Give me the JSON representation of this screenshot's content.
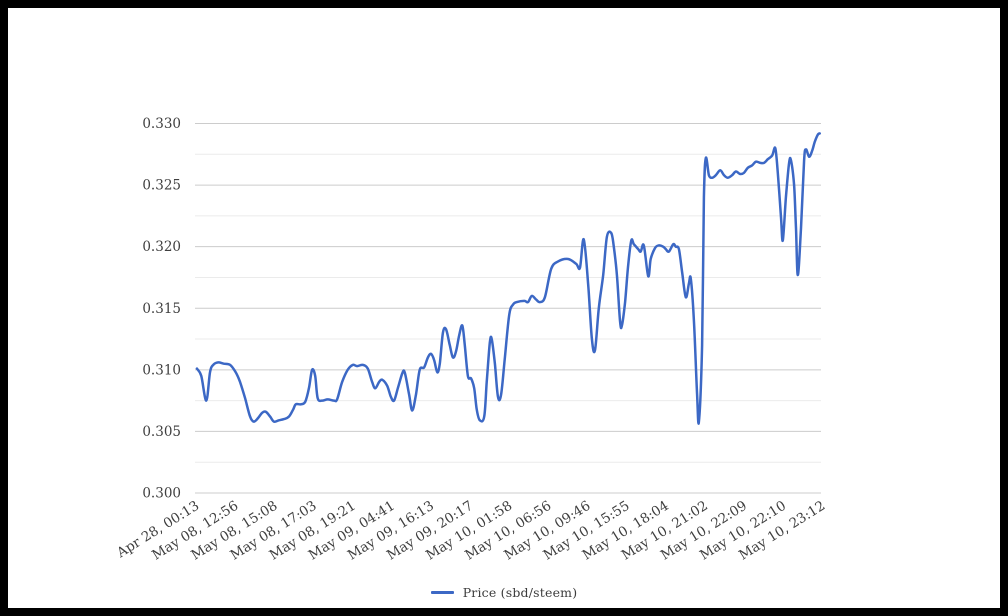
{
  "chart_data": {
    "type": "line",
    "title": "",
    "series_name": "Price (sbd/steem)",
    "line_color": "#3c68c5",
    "grid": {
      "major_color": "#cccccc",
      "minor_color": "#ebebeb",
      "on": true
    },
    "label_color": "#3f3f3f",
    "legend_position": "bottom-center",
    "ylim": [
      0.3,
      0.33
    ],
    "y_major_step": 0.005,
    "y_minor_step": 0.0025,
    "y_ticks": [
      "0.300",
      "0.305",
      "0.310",
      "0.315",
      "0.320",
      "0.325",
      "0.330"
    ],
    "x_ticks": [
      "Apr 28, 00:13",
      "May 08, 12:56",
      "May 08, 15:08",
      "May 08, 17:03",
      "May 08, 19:21",
      "May 09, 04:41",
      "May 09, 16:13",
      "May 09, 20:17",
      "May 10, 01:58",
      "May 10, 06:56",
      "May 10, 09:46",
      "May 10, 15:55",
      "May 10, 18:04",
      "May 10, 21:02",
      "May 10, 22:09",
      "May 10, 22:10",
      "May 10, 23:12"
    ],
    "points": [
      [
        0.003,
        0.3101
      ],
      [
        0.01,
        0.3095
      ],
      [
        0.018,
        0.3075
      ],
      [
        0.024,
        0.3098
      ],
      [
        0.029,
        0.3104
      ],
      [
        0.037,
        0.3106
      ],
      [
        0.046,
        0.3105
      ],
      [
        0.056,
        0.3104
      ],
      [
        0.065,
        0.3098
      ],
      [
        0.072,
        0.309
      ],
      [
        0.08,
        0.3077
      ],
      [
        0.088,
        0.3062
      ],
      [
        0.094,
        0.3058
      ],
      [
        0.101,
        0.3061
      ],
      [
        0.107,
        0.3065
      ],
      [
        0.113,
        0.3066
      ],
      [
        0.12,
        0.3062
      ],
      [
        0.126,
        0.3058
      ],
      [
        0.134,
        0.3059
      ],
      [
        0.142,
        0.306
      ],
      [
        0.15,
        0.3062
      ],
      [
        0.157,
        0.3068
      ],
      [
        0.161,
        0.3072
      ],
      [
        0.169,
        0.3072
      ],
      [
        0.176,
        0.3074
      ],
      [
        0.182,
        0.3085
      ],
      [
        0.187,
        0.31
      ],
      [
        0.192,
        0.3095
      ],
      [
        0.196,
        0.3077
      ],
      [
        0.203,
        0.3075
      ],
      [
        0.212,
        0.3076
      ],
      [
        0.222,
        0.3075
      ],
      [
        0.227,
        0.3076
      ],
      [
        0.235,
        0.309
      ],
      [
        0.244,
        0.31
      ],
      [
        0.252,
        0.3104
      ],
      [
        0.259,
        0.3103
      ],
      [
        0.268,
        0.3104
      ],
      [
        0.276,
        0.3101
      ],
      [
        0.283,
        0.309
      ],
      [
        0.288,
        0.3085
      ],
      [
        0.294,
        0.309
      ],
      [
        0.299,
        0.3092
      ],
      [
        0.307,
        0.3087
      ],
      [
        0.313,
        0.3078
      ],
      [
        0.318,
        0.3075
      ],
      [
        0.324,
        0.3085
      ],
      [
        0.331,
        0.3097
      ],
      [
        0.335,
        0.3098
      ],
      [
        0.342,
        0.308
      ],
      [
        0.347,
        0.3067
      ],
      [
        0.353,
        0.308
      ],
      [
        0.359,
        0.31
      ],
      [
        0.366,
        0.3102
      ],
      [
        0.372,
        0.311
      ],
      [
        0.377,
        0.3113
      ],
      [
        0.382,
        0.3108
      ],
      [
        0.387,
        0.3098
      ],
      [
        0.391,
        0.3105
      ],
      [
        0.396,
        0.313
      ],
      [
        0.401,
        0.3133
      ],
      [
        0.407,
        0.312
      ],
      [
        0.412,
        0.311
      ],
      [
        0.417,
        0.3115
      ],
      [
        0.422,
        0.3128
      ],
      [
        0.427,
        0.3136
      ],
      [
        0.431,
        0.312
      ],
      [
        0.436,
        0.3095
      ],
      [
        0.441,
        0.3093
      ],
      [
        0.446,
        0.3085
      ],
      [
        0.45,
        0.3068
      ],
      [
        0.455,
        0.3059
      ],
      [
        0.462,
        0.3062
      ],
      [
        0.466,
        0.309
      ],
      [
        0.471,
        0.3122
      ],
      [
        0.474,
        0.3125
      ],
      [
        0.479,
        0.3105
      ],
      [
        0.484,
        0.3078
      ],
      [
        0.489,
        0.308
      ],
      [
        0.495,
        0.311
      ],
      [
        0.502,
        0.3145
      ],
      [
        0.508,
        0.3153
      ],
      [
        0.514,
        0.3155
      ],
      [
        0.526,
        0.3156
      ],
      [
        0.532,
        0.3155
      ],
      [
        0.538,
        0.316
      ],
      [
        0.545,
        0.3157
      ],
      [
        0.551,
        0.3155
      ],
      [
        0.559,
        0.3159
      ],
      [
        0.569,
        0.3182
      ],
      [
        0.58,
        0.3188
      ],
      [
        0.596,
        0.319
      ],
      [
        0.609,
        0.3186
      ],
      [
        0.615,
        0.3183
      ],
      [
        0.621,
        0.3206
      ],
      [
        0.628,
        0.317
      ],
      [
        0.634,
        0.3125
      ],
      [
        0.639,
        0.3116
      ],
      [
        0.645,
        0.315
      ],
      [
        0.652,
        0.3177
      ],
      [
        0.658,
        0.3208
      ],
      [
        0.665,
        0.3211
      ],
      [
        0.669,
        0.32
      ],
      [
        0.674,
        0.3177
      ],
      [
        0.679,
        0.3139
      ],
      [
        0.682,
        0.3136
      ],
      [
        0.687,
        0.3155
      ],
      [
        0.692,
        0.3185
      ],
      [
        0.697,
        0.3205
      ],
      [
        0.701,
        0.3202
      ],
      [
        0.708,
        0.3198
      ],
      [
        0.712,
        0.3196
      ],
      [
        0.717,
        0.3201
      ],
      [
        0.724,
        0.3176
      ],
      [
        0.728,
        0.319
      ],
      [
        0.735,
        0.3199
      ],
      [
        0.741,
        0.3201
      ],
      [
        0.748,
        0.32
      ],
      [
        0.752,
        0.3198
      ],
      [
        0.757,
        0.3196
      ],
      [
        0.764,
        0.3202
      ],
      [
        0.768,
        0.32
      ],
      [
        0.773,
        0.3198
      ],
      [
        0.778,
        0.318
      ],
      [
        0.784,
        0.3159
      ],
      [
        0.789,
        0.317
      ],
      [
        0.792,
        0.3174
      ],
      [
        0.797,
        0.314
      ],
      [
        0.802,
        0.308
      ],
      [
        0.805,
        0.3058
      ],
      [
        0.81,
        0.312
      ],
      [
        0.813,
        0.324
      ],
      [
        0.816,
        0.3272
      ],
      [
        0.821,
        0.3258
      ],
      [
        0.826,
        0.3256
      ],
      [
        0.832,
        0.3258
      ],
      [
        0.839,
        0.3262
      ],
      [
        0.845,
        0.3258
      ],
      [
        0.851,
        0.3256
      ],
      [
        0.858,
        0.3258
      ],
      [
        0.864,
        0.3261
      ],
      [
        0.871,
        0.3259
      ],
      [
        0.877,
        0.326
      ],
      [
        0.883,
        0.3264
      ],
      [
        0.89,
        0.3266
      ],
      [
        0.896,
        0.3269
      ],
      [
        0.903,
        0.3268
      ],
      [
        0.909,
        0.3268
      ],
      [
        0.915,
        0.3271
      ],
      [
        0.922,
        0.3274
      ],
      [
        0.927,
        0.328
      ],
      [
        0.931,
        0.326
      ],
      [
        0.936,
        0.3225
      ],
      [
        0.939,
        0.3205
      ],
      [
        0.944,
        0.324
      ],
      [
        0.949,
        0.3268
      ],
      [
        0.952,
        0.327
      ],
      [
        0.957,
        0.325
      ],
      [
        0.96,
        0.3215
      ],
      [
        0.963,
        0.3177
      ],
      [
        0.968,
        0.3215
      ],
      [
        0.973,
        0.327
      ],
      [
        0.976,
        0.3279
      ],
      [
        0.981,
        0.3273
      ],
      [
        0.986,
        0.3278
      ],
      [
        0.99,
        0.3285
      ],
      [
        0.995,
        0.3291
      ],
      [
        0.998,
        0.3292
      ]
    ]
  },
  "legend": {
    "label": "Price (sbd/steem)"
  }
}
